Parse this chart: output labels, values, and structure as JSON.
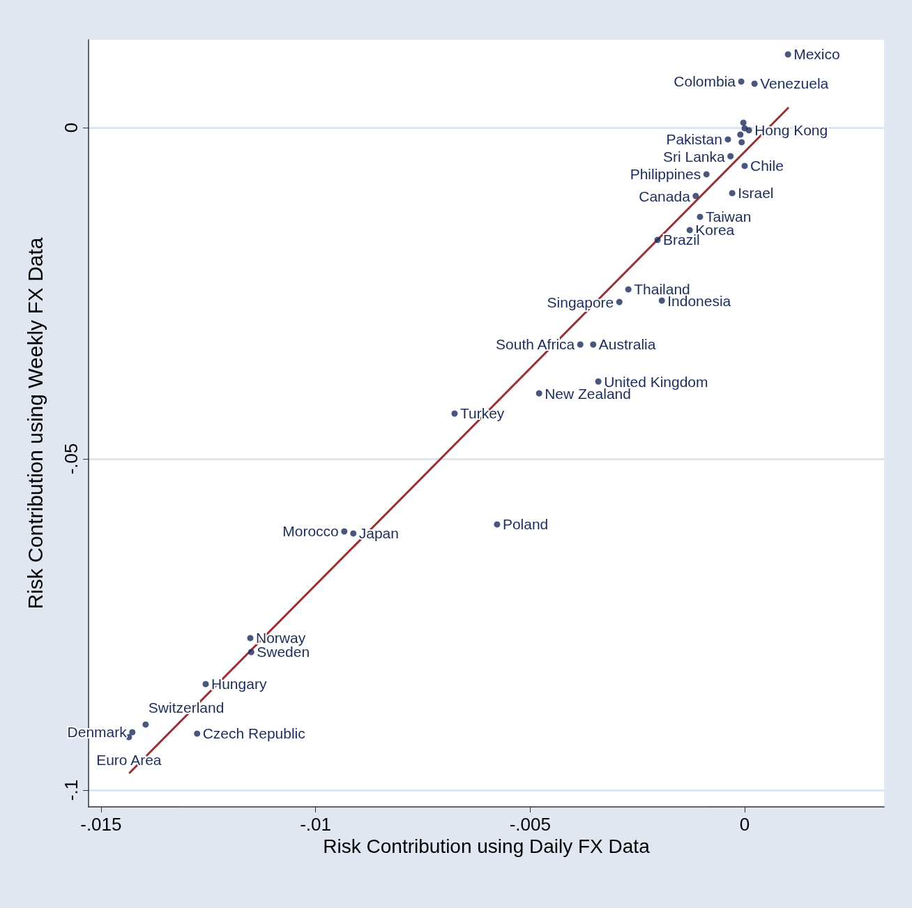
{
  "chart_data": {
    "type": "scatter",
    "xlabel": "Risk Contribution using Daily FX Data",
    "ylabel": "Risk Contribution using Weekly FX Data",
    "xlim": [
      -0.01529,
      0.00325
    ],
    "ylim": [
      -0.10253,
      0.01326
    ],
    "xticks": [
      {
        "value": -0.015,
        "label": "-.015"
      },
      {
        "value": -0.01,
        "label": "-.01"
      },
      {
        "value": -0.005,
        "label": "-.005"
      },
      0
    ],
    "yticks": [
      {
        "value": -0.1,
        "label": "-.1"
      },
      {
        "value": -0.05,
        "label": "-.05"
      },
      0
    ],
    "grid": "y",
    "marker": "circle",
    "series": [
      {
        "type": "scatter",
        "color": "#1c2d5c",
        "x": [
          0.00101,
          -8e-05,
          0.00023,
          0.0001,
          -0.00039,
          -0.00033,
          0,
          -0.00089,
          -0.00029,
          -0.00114,
          -0.00104,
          -0.00128,
          -0.00203,
          -0.00271,
          -0.00292,
          -0.00193,
          -0.00383,
          -0.00353,
          -0.00341,
          -0.00479,
          -0.00676,
          -0.00577,
          -0.00933,
          -0.00912,
          -0.01152,
          -0.0115,
          -0.01256,
          -0.01396,
          -0.01276,
          -0.01427,
          -0.01435,
          -3e-05,
          -0.0001,
          -7e-05,
          0
        ],
        "values": [
          0.01105,
          0.00695,
          0.00663,
          -0.0004,
          -0.00179,
          -0.00432,
          -0.00579,
          -0.00705,
          -0.00989,
          -0.01032,
          -0.01347,
          -0.01547,
          -0.01695,
          -0.02442,
          -0.02632,
          -0.02611,
          -0.03274,
          -0.03274,
          -0.03832,
          -0.04011,
          -0.04316,
          -0.05989,
          -0.06095,
          -0.06126,
          -0.07705,
          -0.07916,
          -0.084,
          -0.0901,
          -0.09147,
          -0.09126,
          -0.092,
          0.00074,
          -0.00105,
          -0.00221,
          -0.0001
        ]
      },
      {
        "type": "line",
        "color": "#9b2f35",
        "marker": "none",
        "x": [
          -0.01433,
          0.00101
        ],
        "values": [
          -0.09737,
          0.00295
        ]
      }
    ],
    "annotations": [
      {
        "text": "Mexico",
        "x": 0.00101,
        "y": 0.01105
      },
      {
        "text": "Colombia",
        "x": -8e-05,
        "y": 0.00695
      },
      {
        "text": "Venezuela",
        "x": 0.00023,
        "y": 0.00663
      },
      {
        "text": "Hong Kong",
        "x": 0.0001,
        "y": -0.0004
      },
      {
        "text": "Pakistan",
        "x": -0.00039,
        "y": -0.00179
      },
      {
        "text": "Sri Lanka",
        "x": -0.00033,
        "y": -0.00432
      },
      {
        "text": "Chile",
        "x": 0,
        "y": -0.00579
      },
      {
        "text": "Philippines",
        "x": -0.00089,
        "y": -0.00705
      },
      {
        "text": "Israel",
        "x": -0.00029,
        "y": -0.00989
      },
      {
        "text": "Canada",
        "x": -0.00114,
        "y": -0.01032
      },
      {
        "text": "Taiwan",
        "x": -0.00104,
        "y": -0.01347
      },
      {
        "text": "Korea",
        "x": -0.00128,
        "y": -0.01547
      },
      {
        "text": "Brazil",
        "x": -0.00203,
        "y": -0.01695
      },
      {
        "text": "Thailand",
        "x": -0.00271,
        "y": -0.02442
      },
      {
        "text": "Singapore",
        "x": -0.00292,
        "y": -0.02632
      },
      {
        "text": "Indonesia",
        "x": -0.00193,
        "y": -0.02611
      },
      {
        "text": "South Africa",
        "x": -0.00383,
        "y": -0.03274
      },
      {
        "text": "Australia",
        "x": -0.00353,
        "y": -0.03274
      },
      {
        "text": "United Kingdom",
        "x": -0.00341,
        "y": -0.03832
      },
      {
        "text": "New Zealand",
        "x": -0.00479,
        "y": -0.04011
      },
      {
        "text": "Turkey",
        "x": -0.00676,
        "y": -0.04316
      },
      {
        "text": "Poland",
        "x": -0.00577,
        "y": -0.05989
      },
      {
        "text": "Morocco",
        "x": -0.00933,
        "y": -0.06095
      },
      {
        "text": "Japan",
        "x": -0.00912,
        "y": -0.06126
      },
      {
        "text": "Norway",
        "x": -0.01152,
        "y": -0.07705
      },
      {
        "text": "Sweden",
        "x": -0.0115,
        "y": -0.07916
      },
      {
        "text": "Hungary",
        "x": -0.01256,
        "y": -0.084
      },
      {
        "text": "Switzerland",
        "x": -0.01396,
        "y": -0.0901
      },
      {
        "text": "Czech Republic",
        "x": -0.01276,
        "y": -0.09147
      },
      {
        "text": "Denmark",
        "x": -0.01427,
        "y": -0.09126
      },
      {
        "text": "Euro Area",
        "x": -0.01435,
        "y": -0.092
      }
    ]
  }
}
